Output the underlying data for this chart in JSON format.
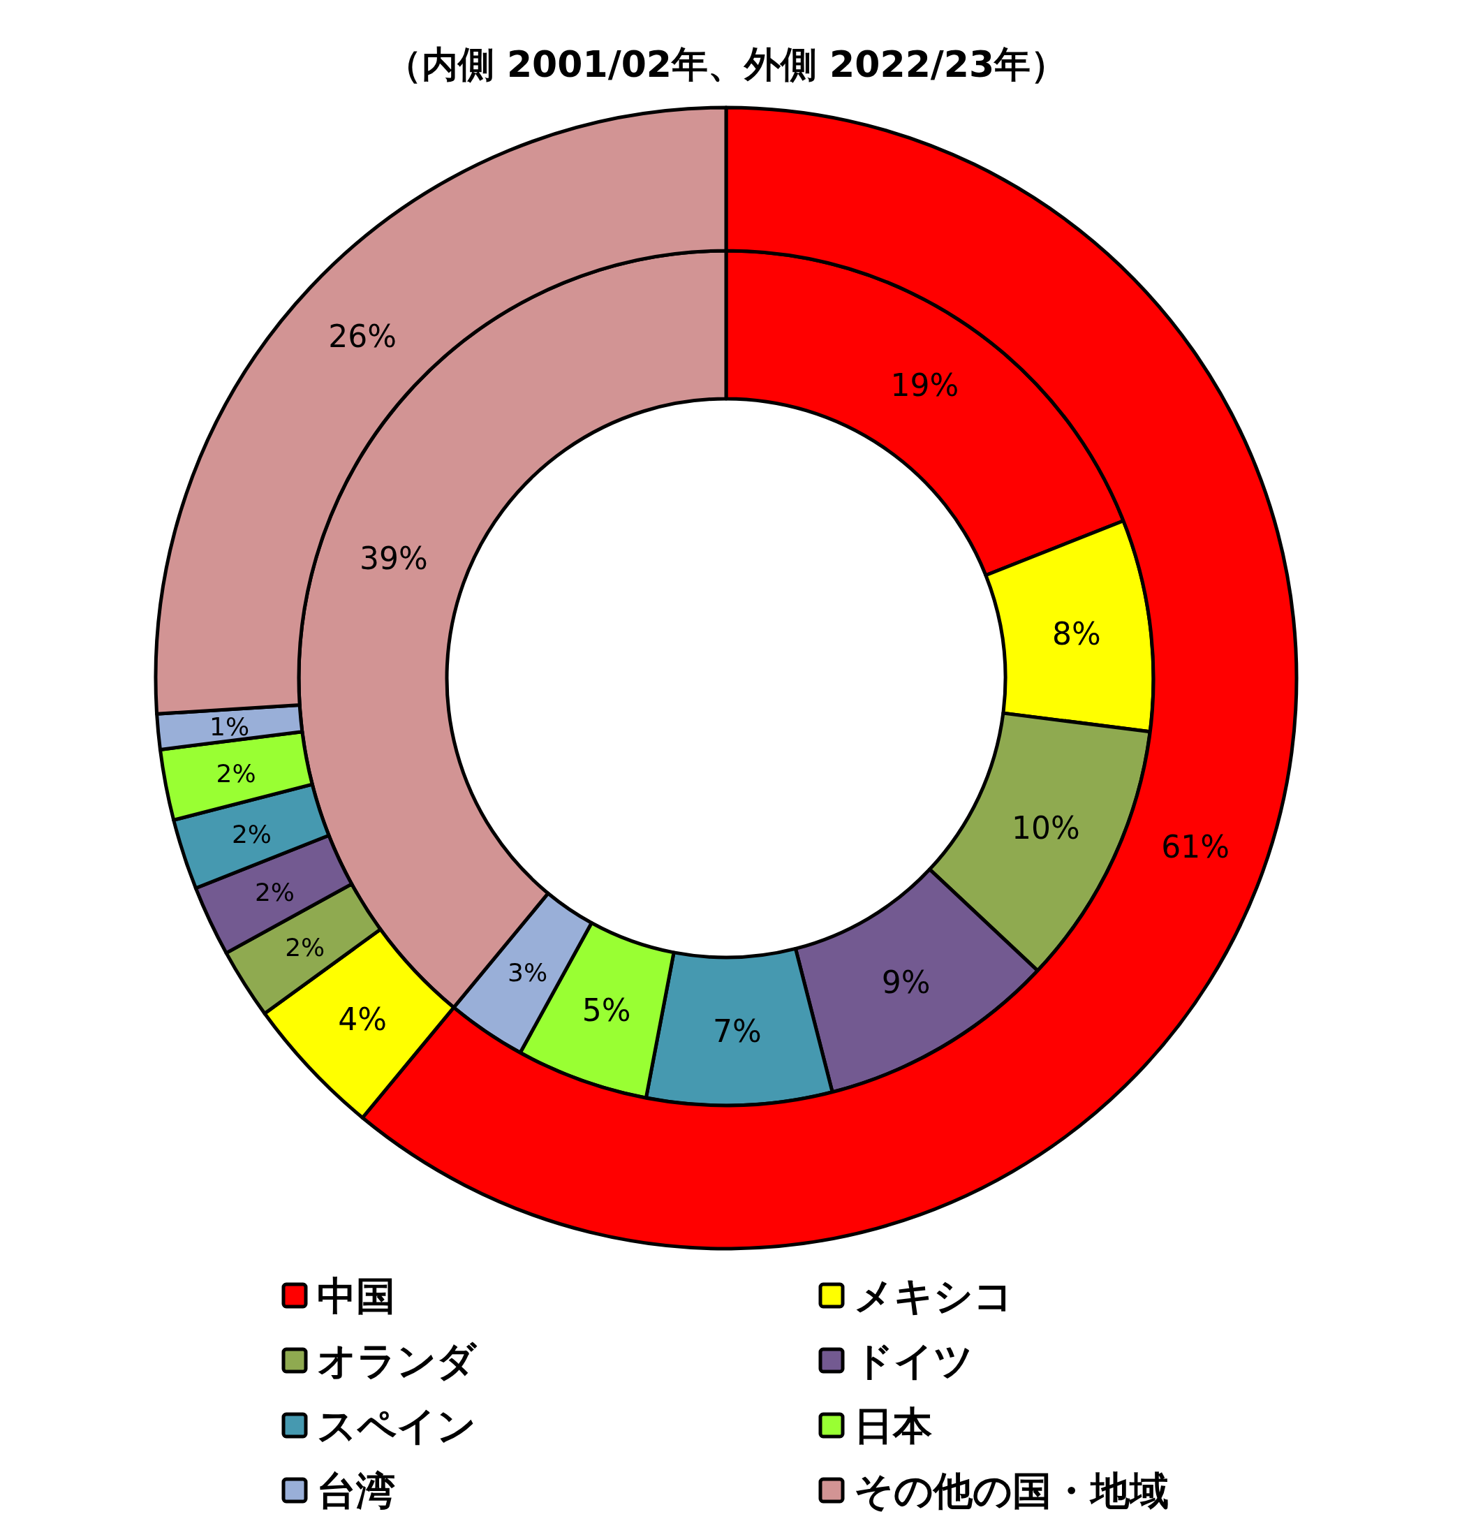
{
  "chart_data": {
    "type": "donut",
    "title": "（内側 2001/02年、外側 2022/23年）",
    "categories": [
      "中国",
      "メキシコ",
      "オランダ",
      "ドイツ",
      "スペイン",
      "日本",
      "台湾",
      "その他の国・地域"
    ],
    "colors": [
      "#ff0000",
      "#ffff00",
      "#8faa50",
      "#735a91",
      "#4699b0",
      "#99ff33",
      "#99afd8",
      "#d29494"
    ],
    "series": [
      {
        "values": [
          19,
          8,
          10,
          9,
          7,
          5,
          3,
          39
        ],
        "value_labels": [
          "19%",
          "8%",
          "10%",
          "9%",
          "7%",
          "5%",
          "3%",
          "39%"
        ]
      },
      {
        "values": [
          61,
          4,
          2,
          2,
          2,
          2,
          1,
          26
        ],
        "value_labels": [
          "61%",
          "4%",
          "2%",
          "2%",
          "2%",
          "2%",
          "1%",
          "26%"
        ]
      }
    ],
    "legend": "bottom"
  }
}
